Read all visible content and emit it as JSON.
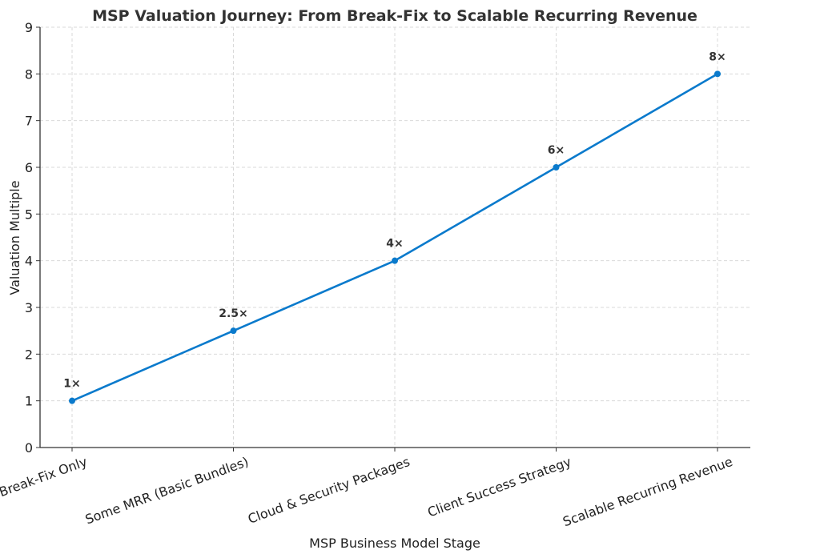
{
  "chart_data": {
    "type": "line",
    "title": "MSP Valuation Journey: From Break-Fix to Scalable Recurring Revenue",
    "xlabel": "MSP Business Model Stage",
    "ylabel": "Valuation Multiple",
    "categories": [
      "Break-Fix Only",
      "Some MRR (Basic Bundles)",
      "Cloud & Security Packages",
      "Client Success Strategy",
      "Scalable Recurring Revenue"
    ],
    "values": [
      1,
      2.5,
      4,
      6,
      8
    ],
    "data_labels": [
      "1×",
      "2.5×",
      "4×",
      "6×",
      "8×"
    ],
    "ylim": [
      0,
      9
    ],
    "yticks": [
      0,
      1,
      2,
      3,
      4,
      5,
      6,
      7,
      8,
      9
    ],
    "grid": true,
    "colors": {
      "line": "#0a7acc",
      "text": "#333333"
    }
  }
}
